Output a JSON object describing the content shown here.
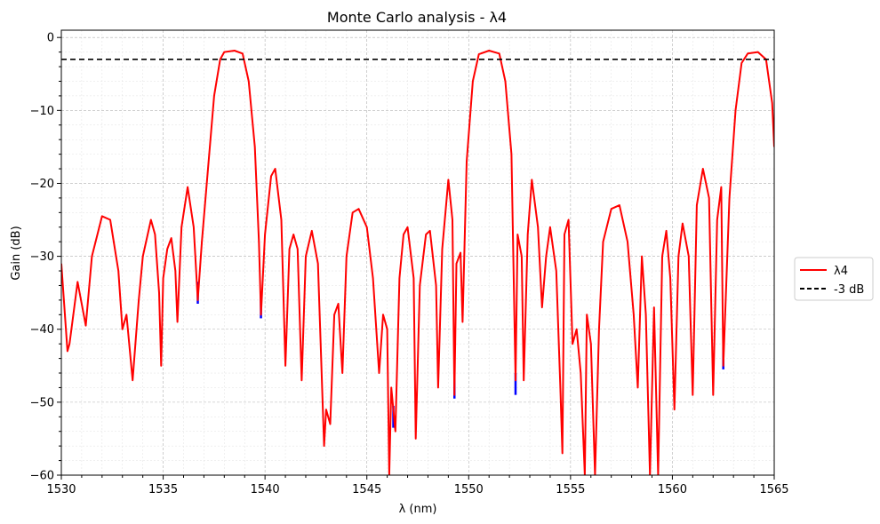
{
  "chart_data": {
    "type": "line",
    "title": "Monte Carlo analysis - λ4",
    "xlabel": "λ (nm)",
    "ylabel": "Gain (dB)",
    "xlim": [
      1530,
      1565
    ],
    "ylim": [
      -60,
      1
    ],
    "x_ticks": [
      1530,
      1535,
      1540,
      1545,
      1550,
      1555,
      1560,
      1565
    ],
    "y_ticks": [
      0,
      -10,
      -20,
      -30,
      -40,
      -50,
      -60
    ],
    "grid": true,
    "minor_grid": true,
    "legend_position": "outside-right",
    "colors": {
      "main": "#ff0000",
      "mc": "#0000ff",
      "threshold": "#000000"
    },
    "series": [
      {
        "name": "λ4",
        "color": "#ff0000",
        "points": [
          [
            1530.0,
            -31
          ],
          [
            1530.3,
            -43
          ],
          [
            1530.4,
            -42
          ],
          [
            1530.8,
            -33.5
          ],
          [
            1531.2,
            -39.5
          ],
          [
            1531.5,
            -30
          ],
          [
            1532.0,
            -24.5
          ],
          [
            1532.4,
            -25
          ],
          [
            1532.8,
            -32
          ],
          [
            1533.0,
            -40
          ],
          [
            1533.2,
            -38
          ],
          [
            1533.5,
            -47
          ],
          [
            1533.8,
            -36
          ],
          [
            1534.0,
            -30
          ],
          [
            1534.4,
            -25
          ],
          [
            1534.6,
            -27
          ],
          [
            1534.8,
            -35
          ],
          [
            1534.9,
            -45
          ],
          [
            1535.0,
            -33
          ],
          [
            1535.2,
            -29
          ],
          [
            1535.4,
            -27.5
          ],
          [
            1535.6,
            -32
          ],
          [
            1535.7,
            -39
          ],
          [
            1535.9,
            -26
          ],
          [
            1536.2,
            -20.5
          ],
          [
            1536.5,
            -26
          ],
          [
            1536.7,
            -36
          ],
          [
            1536.9,
            -28
          ],
          [
            1537.2,
            -18
          ],
          [
            1537.5,
            -8
          ],
          [
            1537.8,
            -3
          ],
          [
            1538.0,
            -2
          ],
          [
            1538.5,
            -1.8
          ],
          [
            1538.9,
            -2.2
          ],
          [
            1539.2,
            -6
          ],
          [
            1539.5,
            -15
          ],
          [
            1539.7,
            -28
          ],
          [
            1539.8,
            -38
          ],
          [
            1540.0,
            -27
          ],
          [
            1540.3,
            -19
          ],
          [
            1540.5,
            -18
          ],
          [
            1540.8,
            -25
          ],
          [
            1541.0,
            -45
          ],
          [
            1541.2,
            -29
          ],
          [
            1541.4,
            -27
          ],
          [
            1541.6,
            -29
          ],
          [
            1541.8,
            -47
          ],
          [
            1542.0,
            -30
          ],
          [
            1542.3,
            -26.5
          ],
          [
            1542.6,
            -31
          ],
          [
            1542.9,
            -56
          ],
          [
            1543.0,
            -51
          ],
          [
            1543.2,
            -53
          ],
          [
            1543.4,
            -38
          ],
          [
            1543.6,
            -36.5
          ],
          [
            1543.8,
            -46
          ],
          [
            1544.0,
            -30
          ],
          [
            1544.3,
            -24
          ],
          [
            1544.6,
            -23.5
          ],
          [
            1545.0,
            -26
          ],
          [
            1545.3,
            -33
          ],
          [
            1545.6,
            -46
          ],
          [
            1545.8,
            -38
          ],
          [
            1546.0,
            -40
          ],
          [
            1546.1,
            -60
          ],
          [
            1546.2,
            -48
          ],
          [
            1546.4,
            -54
          ],
          [
            1546.6,
            -33
          ],
          [
            1546.8,
            -27
          ],
          [
            1547.0,
            -26
          ],
          [
            1547.3,
            -33
          ],
          [
            1547.4,
            -55
          ],
          [
            1547.6,
            -34
          ],
          [
            1547.9,
            -27
          ],
          [
            1548.1,
            -26.5
          ],
          [
            1548.4,
            -34
          ],
          [
            1548.5,
            -48
          ],
          [
            1548.7,
            -29
          ],
          [
            1549.0,
            -19.5
          ],
          [
            1549.2,
            -25
          ],
          [
            1549.3,
            -49
          ],
          [
            1549.4,
            -31
          ],
          [
            1549.6,
            -29.5
          ],
          [
            1549.7,
            -39
          ],
          [
            1549.9,
            -17
          ],
          [
            1550.2,
            -6
          ],
          [
            1550.5,
            -2.3
          ],
          [
            1551.0,
            -1.8
          ],
          [
            1551.5,
            -2.2
          ],
          [
            1551.8,
            -6
          ],
          [
            1552.1,
            -16
          ],
          [
            1552.3,
            -47
          ],
          [
            1552.4,
            -27
          ],
          [
            1552.6,
            -30
          ],
          [
            1552.7,
            -47
          ],
          [
            1552.9,
            -27
          ],
          [
            1553.1,
            -19.5
          ],
          [
            1553.4,
            -26
          ],
          [
            1553.6,
            -37
          ],
          [
            1553.8,
            -30
          ],
          [
            1554.0,
            -26
          ],
          [
            1554.3,
            -32
          ],
          [
            1554.5,
            -48
          ],
          [
            1554.6,
            -57
          ],
          [
            1554.7,
            -27
          ],
          [
            1554.9,
            -25
          ],
          [
            1555.1,
            -42
          ],
          [
            1555.3,
            -40
          ],
          [
            1555.5,
            -46
          ],
          [
            1555.7,
            -60
          ],
          [
            1555.8,
            -38
          ],
          [
            1556.0,
            -42
          ],
          [
            1556.2,
            -60
          ],
          [
            1556.4,
            -40
          ],
          [
            1556.6,
            -28
          ],
          [
            1557.0,
            -23.5
          ],
          [
            1557.4,
            -23
          ],
          [
            1557.8,
            -28
          ],
          [
            1558.1,
            -38
          ],
          [
            1558.3,
            -48
          ],
          [
            1558.5,
            -30
          ],
          [
            1558.7,
            -38
          ],
          [
            1558.9,
            -60
          ],
          [
            1559.1,
            -37
          ],
          [
            1559.3,
            -60
          ],
          [
            1559.5,
            -30
          ],
          [
            1559.7,
            -26.5
          ],
          [
            1559.9,
            -33
          ],
          [
            1560.1,
            -51
          ],
          [
            1560.3,
            -30
          ],
          [
            1560.5,
            -25.5
          ],
          [
            1560.8,
            -30
          ],
          [
            1561.0,
            -49
          ],
          [
            1561.2,
            -23
          ],
          [
            1561.5,
            -18
          ],
          [
            1561.8,
            -22
          ],
          [
            1562.0,
            -49
          ],
          [
            1562.2,
            -25
          ],
          [
            1562.4,
            -20.5
          ],
          [
            1562.5,
            -45
          ],
          [
            1562.8,
            -22
          ],
          [
            1563.1,
            -10
          ],
          [
            1563.4,
            -3.5
          ],
          [
            1563.7,
            -2.2
          ],
          [
            1564.2,
            -2
          ],
          [
            1564.6,
            -3
          ],
          [
            1564.9,
            -9
          ],
          [
            1565.0,
            -15
          ]
        ]
      },
      {
        "name": "-3 dB",
        "color": "#000000",
        "style": "dashed",
        "points": [
          [
            1530,
            -3
          ],
          [
            1565,
            -3
          ]
        ]
      }
    ],
    "mc_dips": [
      [
        1536.7,
        -36.5
      ],
      [
        1539.8,
        -38.5
      ],
      [
        1546.3,
        -53.5
      ],
      [
        1549.3,
        -49.5
      ],
      [
        1552.3,
        -49
      ],
      [
        1562.5,
        -45.5
      ]
    ]
  }
}
